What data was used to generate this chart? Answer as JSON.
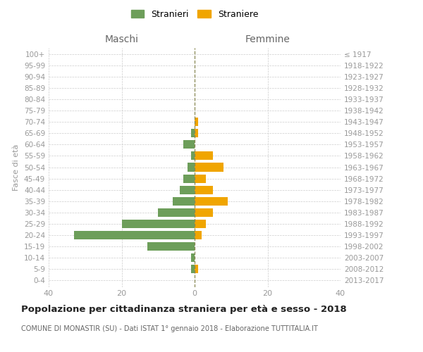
{
  "age_groups": [
    "0-4",
    "5-9",
    "10-14",
    "15-19",
    "20-24",
    "25-29",
    "30-34",
    "35-39",
    "40-44",
    "45-49",
    "50-54",
    "55-59",
    "60-64",
    "65-69",
    "70-74",
    "75-79",
    "80-84",
    "85-89",
    "90-94",
    "95-99",
    "100+"
  ],
  "birth_years": [
    "2013-2017",
    "2008-2012",
    "2003-2007",
    "1998-2002",
    "1993-1997",
    "1988-1992",
    "1983-1987",
    "1978-1982",
    "1973-1977",
    "1968-1972",
    "1963-1967",
    "1958-1962",
    "1953-1957",
    "1948-1952",
    "1943-1947",
    "1938-1942",
    "1933-1937",
    "1928-1932",
    "1923-1927",
    "1918-1922",
    "≤ 1917"
  ],
  "maschi": [
    0,
    1,
    1,
    13,
    33,
    20,
    10,
    6,
    4,
    3,
    2,
    1,
    3,
    1,
    0,
    0,
    0,
    0,
    0,
    0,
    0
  ],
  "femmine": [
    0,
    1,
    0,
    0,
    2,
    3,
    5,
    9,
    5,
    3,
    8,
    5,
    0,
    1,
    1,
    0,
    0,
    0,
    0,
    0,
    0
  ],
  "maschi_color": "#6d9e5a",
  "femmine_color": "#f0a500",
  "background_color": "#ffffff",
  "grid_color": "#cccccc",
  "center_line_color": "#888855",
  "title": "Popolazione per cittadinanza straniera per età e sesso - 2018",
  "subtitle": "COMUNE DI MONASTIR (SU) - Dati ISTAT 1° gennaio 2018 - Elaborazione TUTTITALIA.IT",
  "label_maschi": "Maschi",
  "label_femmine": "Femmine",
  "ylabel_left": "Fasce di età",
  "legend_stranieri": "Stranieri",
  "legend_straniere": "Straniere",
  "xlim": 40,
  "tick_color": "#999999",
  "label_color": "#666666",
  "bar_height": 0.75
}
